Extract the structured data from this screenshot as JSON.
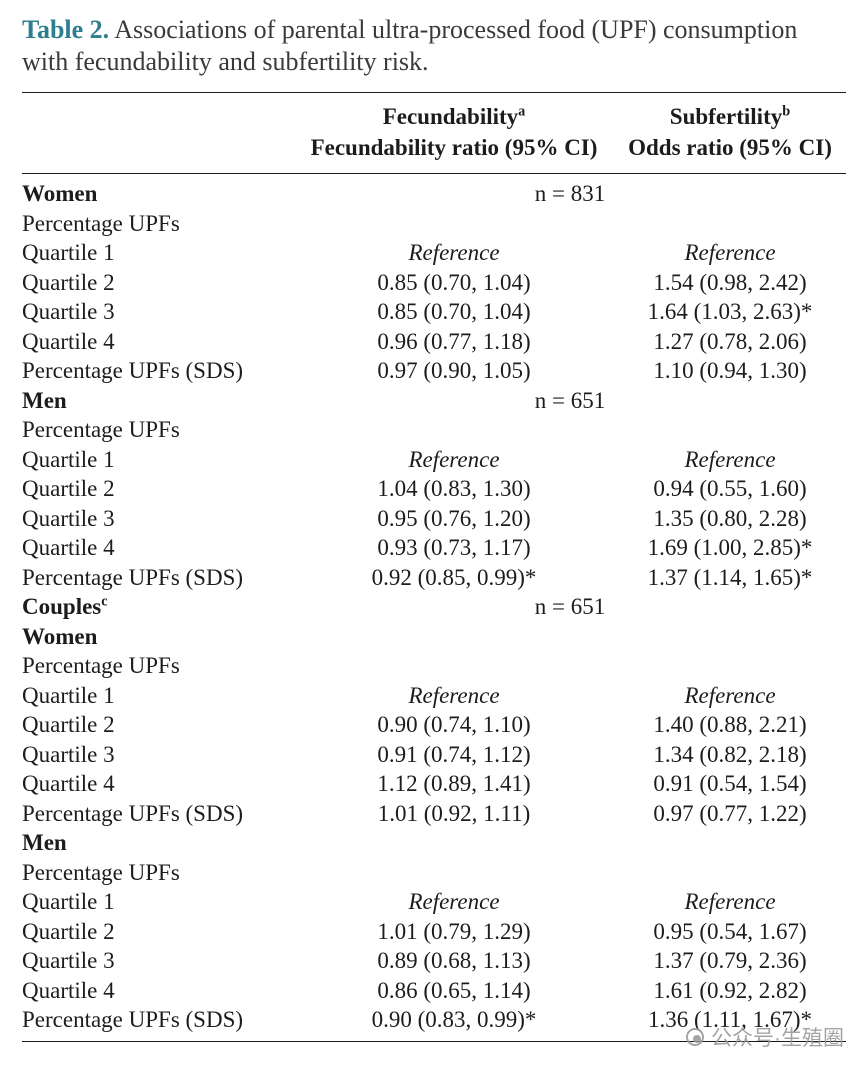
{
  "title": {
    "label": "Table 2.",
    "text": "Associations of parental ultra-processed food (UPF) consumption with fecundability and subfertility risk."
  },
  "header": {
    "columns": [
      {
        "name": "Fecundability",
        "sup": "a",
        "sub": "Fecundability ratio (95% CI)"
      },
      {
        "name": "Subfertility",
        "sup": "b",
        "sub": "Odds ratio (95% CI)"
      }
    ]
  },
  "rows": [
    {
      "type": "section",
      "label": "Women",
      "n": "n = 831"
    },
    {
      "type": "subsection",
      "label": "Percentage UPFs"
    },
    {
      "type": "data",
      "label": "Quartile 1",
      "c1": "Reference",
      "c2": "Reference",
      "reference": true
    },
    {
      "type": "data",
      "label": "Quartile 2",
      "c1": "0.85 (0.70, 1.04)",
      "c2": "1.54 (0.98, 2.42)"
    },
    {
      "type": "data",
      "label": "Quartile 3",
      "c1": "0.85 (0.70, 1.04)",
      "c2": "1.64 (1.03, 2.63)*"
    },
    {
      "type": "data",
      "label": "Quartile 4",
      "c1": "0.96 (0.77, 1.18)",
      "c2": "1.27 (0.78, 2.06)"
    },
    {
      "type": "data",
      "label": "Percentage UPFs (SDS)",
      "c1": "0.97 (0.90, 1.05)",
      "c2": "1.10 (0.94, 1.30)"
    },
    {
      "type": "section",
      "label": "Men",
      "n": "n = 651"
    },
    {
      "type": "subsection",
      "label": "Percentage UPFs"
    },
    {
      "type": "data",
      "label": "Quartile 1",
      "c1": "Reference",
      "c2": "Reference",
      "reference": true
    },
    {
      "type": "data",
      "label": "Quartile 2",
      "c1": "1.04 (0.83, 1.30)",
      "c2": "0.94 (0.55, 1.60)"
    },
    {
      "type": "data",
      "label": "Quartile 3",
      "c1": "0.95 (0.76, 1.20)",
      "c2": "1.35 (0.80, 2.28)"
    },
    {
      "type": "data",
      "label": "Quartile 4",
      "c1": "0.93 (0.73, 1.17)",
      "c2": "1.69 (1.00, 2.85)*"
    },
    {
      "type": "data",
      "label": "Percentage UPFs (SDS)",
      "c1": "0.92 (0.85, 0.99)*",
      "c2": "1.37 (1.14, 1.65)*"
    },
    {
      "type": "section",
      "label": "Couples",
      "sup": "c",
      "n": "n = 651"
    },
    {
      "type": "section",
      "label": "Women"
    },
    {
      "type": "subsection",
      "label": "Percentage UPFs"
    },
    {
      "type": "data",
      "label": "Quartile 1",
      "c1": "Reference",
      "c2": "Reference",
      "reference": true
    },
    {
      "type": "data",
      "label": "Quartile 2",
      "c1": "0.90 (0.74, 1.10)",
      "c2": "1.40 (0.88, 2.21)"
    },
    {
      "type": "data",
      "label": "Quartile 3",
      "c1": "0.91 (0.74, 1.12)",
      "c2": "1.34 (0.82, 2.18)"
    },
    {
      "type": "data",
      "label": "Quartile 4",
      "c1": "1.12 (0.89, 1.41)",
      "c2": "0.91 (0.54, 1.54)"
    },
    {
      "type": "data",
      "label": "Percentage UPFs (SDS)",
      "c1": "1.01 (0.92, 1.11)",
      "c2": "0.97 (0.77, 1.22)"
    },
    {
      "type": "section",
      "label": "Men"
    },
    {
      "type": "subsection",
      "label": "Percentage UPFs"
    },
    {
      "type": "data",
      "label": "Quartile 1",
      "c1": "Reference",
      "c2": "Reference",
      "reference": true
    },
    {
      "type": "data",
      "label": "Quartile 2",
      "c1": "1.01 (0.79, 1.29)",
      "c2": "0.95 (0.54, 1.67)"
    },
    {
      "type": "data",
      "label": "Quartile 3",
      "c1": "0.89 (0.68, 1.13)",
      "c2": "1.37 (0.79, 2.36)"
    },
    {
      "type": "data",
      "label": "Quartile 4",
      "c1": "0.86 (0.65, 1.14)",
      "c2": "1.61 (0.92, 2.82)"
    },
    {
      "type": "data",
      "label": "Percentage UPFs (SDS)",
      "c1": "0.90 (0.83, 0.99)*",
      "c2": "1.36 (1.11, 1.67)*"
    }
  ],
  "watermark": {
    "text": "公众号·生殖圈"
  },
  "colors": {
    "title_accent": "#2d7e8f",
    "text": "#1c1c1c",
    "watermark": "#9b9b9b"
  }
}
